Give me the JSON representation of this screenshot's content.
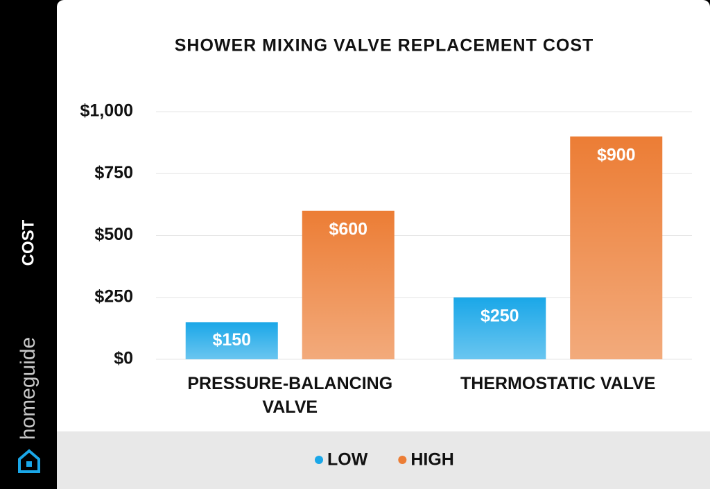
{
  "brand": "homeguide",
  "chart_data": {
    "type": "bar",
    "title": "SHOWER MIXING VALVE REPLACEMENT COST",
    "y_label": "COST",
    "categories": [
      "PRESSURE-BALANCING VALVE",
      "THERMOSTATIC VALVE"
    ],
    "series": [
      {
        "name": "LOW",
        "color": "#1aa7e8",
        "values": [
          150,
          250
        ],
        "value_labels": [
          "$150",
          "$250"
        ]
      },
      {
        "name": "HIGH",
        "color": "#ec7d35",
        "values": [
          600,
          900
        ],
        "value_labels": [
          "$600",
          "$900"
        ]
      }
    ],
    "ylim": [
      0,
      1000
    ],
    "yticks": [
      {
        "value": 0,
        "label": "$0"
      },
      {
        "value": 250,
        "label": "$250"
      },
      {
        "value": 500,
        "label": "$500"
      },
      {
        "value": 750,
        "label": "$750"
      },
      {
        "value": 1000,
        "label": "$1,000"
      }
    ],
    "grid": true,
    "legend": "bottom"
  }
}
